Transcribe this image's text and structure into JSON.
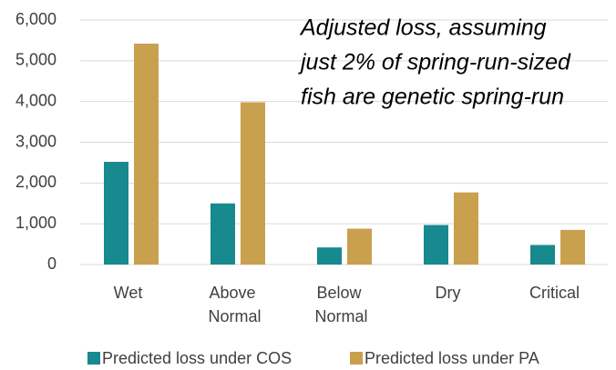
{
  "chart_data": {
    "type": "bar",
    "annotation": [
      "Adjusted loss, assuming",
      "just 2% of spring-run-sized",
      "fish are genetic spring-run"
    ],
    "categories": [
      "Wet",
      "Above Normal",
      "Below Normal",
      "Dry",
      "Critical"
    ],
    "series": [
      {
        "name": "Predicted loss under COS",
        "color": "#17898f",
        "values": [
          2520,
          1500,
          420,
          970,
          480
        ]
      },
      {
        "name": "Predicted loss under PA",
        "color": "#c9a04e",
        "values": [
          5420,
          3980,
          880,
          1770,
          850
        ]
      }
    ],
    "ylim": [
      0,
      6000
    ],
    "yticks": [
      0,
      {
        "value": 1000,
        "label": "1,000"
      },
      {
        "value": 2000,
        "label": "2,000"
      },
      {
        "value": 3000,
        "label": "3,000"
      },
      {
        "value": 4000,
        "label": "4,000"
      },
      {
        "value": 5000,
        "label": "5,000"
      },
      {
        "value": 6000,
        "label": "6,000"
      }
    ],
    "grid": true,
    "legend": "bottom"
  }
}
